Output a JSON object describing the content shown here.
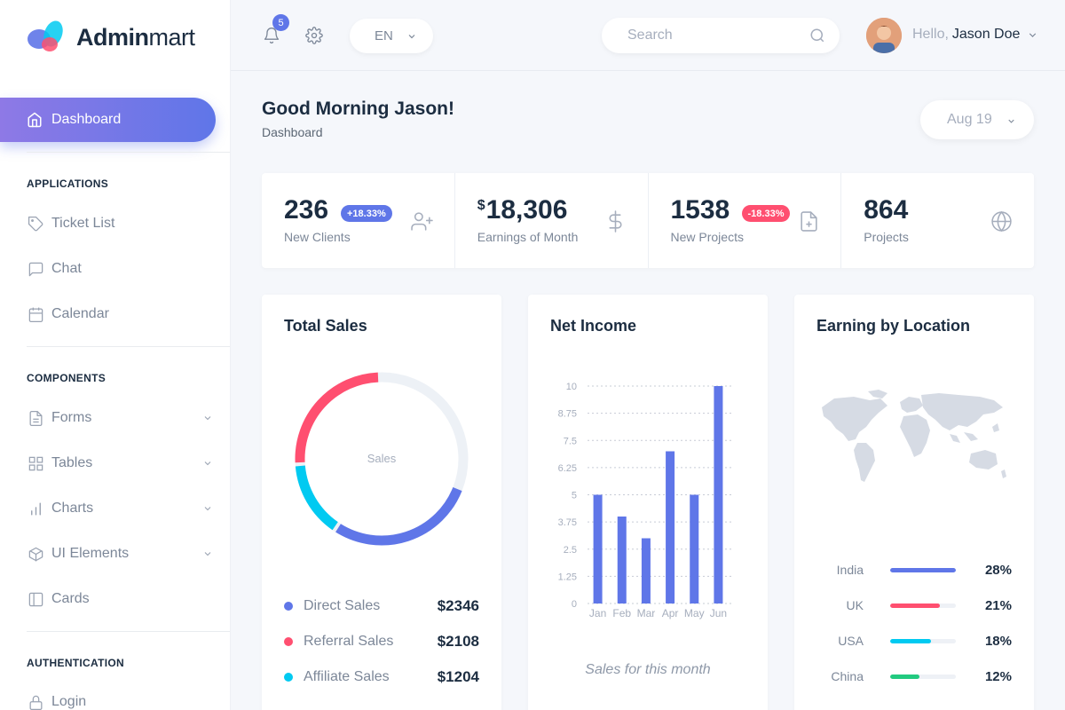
{
  "brand": {
    "name_bold": "Admin",
    "name_light": "mart"
  },
  "sidebar": {
    "active": {
      "label": "Dashboard",
      "icon": "home-icon"
    },
    "sections": [
      {
        "title": "APPLICATIONS",
        "items": [
          {
            "label": "Ticket List",
            "icon": "tag-icon"
          },
          {
            "label": "Chat",
            "icon": "chat-icon"
          },
          {
            "label": "Calendar",
            "icon": "calendar-icon"
          }
        ]
      },
      {
        "title": "COMPONENTS",
        "items": [
          {
            "label": "Forms",
            "icon": "file-text-icon",
            "has_children": true
          },
          {
            "label": "Tables",
            "icon": "grid-icon",
            "has_children": true
          },
          {
            "label": "Charts",
            "icon": "bar-chart-icon",
            "has_children": true
          },
          {
            "label": "UI Elements",
            "icon": "box-icon",
            "has_children": true
          },
          {
            "label": "Cards",
            "icon": "sidebar-icon",
            "has_children": false
          }
        ]
      },
      {
        "title": "AUTHENTICATION",
        "items": [
          {
            "label": "Login",
            "icon": "lock-icon"
          }
        ]
      }
    ]
  },
  "topbar": {
    "notifications_count": "5",
    "language": "EN",
    "search_placeholder": "Search",
    "greeting_prefix": "Hello,",
    "user_name": "Jason Doe"
  },
  "page": {
    "title": "Good Morning Jason!",
    "breadcrumb": "Dashboard",
    "date": "Aug 19"
  },
  "stats": [
    {
      "value": "236",
      "currency": "",
      "label": "New Clients",
      "badge": "+18.33%",
      "badge_color": "#5f76e8",
      "icon": "user-plus-icon"
    },
    {
      "value": "18,306",
      "currency": "$",
      "label": "Earnings of Month",
      "badge": "",
      "badge_color": "",
      "icon": "dollar-icon"
    },
    {
      "value": "1538",
      "currency": "",
      "label": "New Projects",
      "badge": "-18.33%",
      "badge_color": "#ff4f70",
      "icon": "file-plus-icon"
    },
    {
      "value": "864",
      "currency": "",
      "label": "Projects",
      "badge": "",
      "badge_color": "",
      "icon": "globe-icon"
    }
  ],
  "total_sales": {
    "title": "Total Sales",
    "center_label": "Sales",
    "legend": [
      {
        "name": "Direct Sales",
        "value": "$2346",
        "color": "#5f76e8"
      },
      {
        "name": "Referral Sales",
        "value": "$2108",
        "color": "#ff4f70"
      },
      {
        "name": "Affiliate Sales",
        "value": "$1204",
        "color": "#01caf1"
      }
    ]
  },
  "net_income": {
    "title": "Net Income",
    "note": "Sales for this month"
  },
  "earning_location": {
    "title": "Earning by Location",
    "rows": [
      {
        "country": "India",
        "percent": "28%",
        "fill": 1.0,
        "color": "#5f76e8"
      },
      {
        "country": "UK",
        "percent": "21%",
        "fill": 0.75,
        "color": "#ff4f70"
      },
      {
        "country": "USA",
        "percent": "18%",
        "fill": 0.62,
        "color": "#01caf1"
      },
      {
        "country": "China",
        "percent": "12%",
        "fill": 0.45,
        "color": "#22ca80"
      }
    ]
  },
  "chart_data": [
    {
      "type": "pie",
      "title": "Total Sales",
      "center_label": "Sales",
      "slices": [
        {
          "name": "Direct Sales",
          "value": 2346,
          "color": "#5f76e8"
        },
        {
          "name": "Referral Sales",
          "value": 2108,
          "color": "#ff4f70"
        },
        {
          "name": "Affiliate Sales",
          "value": 1204,
          "color": "#01caf1"
        }
      ],
      "donut": true
    },
    {
      "type": "bar",
      "title": "Net Income",
      "categories": [
        "Jan",
        "Feb",
        "Mar",
        "Apr",
        "May",
        "Jun"
      ],
      "values": [
        5,
        4,
        3,
        7,
        5,
        10
      ],
      "yticks": [
        "0",
        "1.25",
        "2.5",
        "3.75",
        "5",
        "6.25",
        "7.5",
        "8.75",
        "10"
      ],
      "ylim": [
        0,
        10
      ],
      "grid": true,
      "color": "#5f76e8"
    }
  ]
}
